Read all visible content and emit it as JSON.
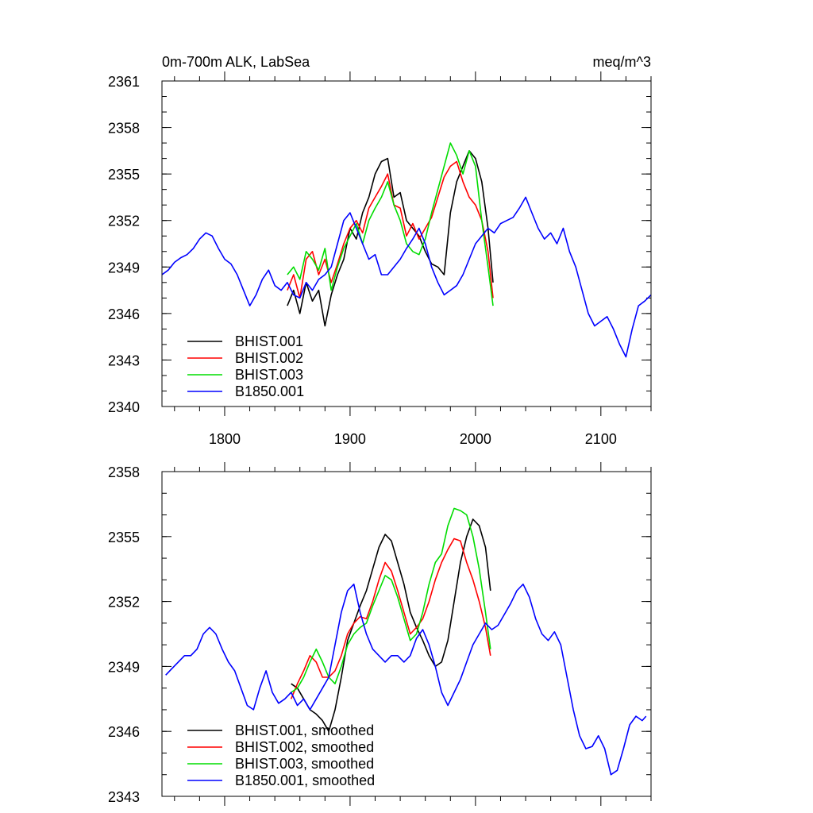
{
  "chart_data": [
    {
      "type": "line",
      "title": "0m-700m ALK, LabSea",
      "units": "meq/m^3",
      "xlim": [
        1750,
        2140
      ],
      "ylim": [
        2340,
        2361
      ],
      "x_ticks": [
        1800,
        1900,
        2000,
        2100
      ],
      "x_tick_labels": [
        "1800",
        "1900",
        "2000",
        "2100"
      ],
      "y_ticks": [
        2340,
        2343,
        2346,
        2349,
        2352,
        2355,
        2358,
        2361
      ],
      "y_tick_labels": [
        "2340",
        "2343",
        "2346",
        "2349",
        "2352",
        "2355",
        "2358",
        "2361"
      ],
      "grid": false,
      "legend_position": "bottom-left",
      "series": [
        {
          "name": "BHIST.001",
          "color": "#000000",
          "x": [
            1850,
            1855,
            1860,
            1865,
            1870,
            1875,
            1880,
            1885,
            1890,
            1895,
            1900,
            1905,
            1910,
            1915,
            1920,
            1925,
            1930,
            1935,
            1940,
            1945,
            1950,
            1955,
            1960,
            1965,
            1970,
            1975,
            1980,
            1985,
            1990,
            1995,
            2000,
            2005,
            2010,
            2014
          ],
          "y": [
            2346.5,
            2347.5,
            2346.0,
            2348.0,
            2346.8,
            2347.5,
            2345.2,
            2347.2,
            2348.5,
            2349.5,
            2351.5,
            2350.8,
            2352.5,
            2353.5,
            2355.0,
            2355.8,
            2356.0,
            2353.5,
            2353.8,
            2352.0,
            2351.5,
            2351.0,
            2350.0,
            2349.2,
            2349.0,
            2348.5,
            2352.5,
            2354.5,
            2355.5,
            2356.5,
            2356.0,
            2354.5,
            2351.5,
            2348.0
          ]
        },
        {
          "name": "BHIST.002",
          "color": "#ff0000",
          "x": [
            1850,
            1855,
            1860,
            1865,
            1870,
            1875,
            1880,
            1885,
            1890,
            1895,
            1900,
            1905,
            1910,
            1915,
            1920,
            1925,
            1930,
            1935,
            1940,
            1945,
            1950,
            1955,
            1960,
            1965,
            1970,
            1975,
            1980,
            1985,
            1990,
            1995,
            2000,
            2005,
            2010,
            2014
          ],
          "y": [
            2347.5,
            2348.5,
            2347.0,
            2349.5,
            2350.0,
            2348.5,
            2349.5,
            2348.0,
            2349.2,
            2350.5,
            2351.5,
            2352.0,
            2351.2,
            2352.8,
            2353.5,
            2354.2,
            2355.0,
            2353.0,
            2352.8,
            2351.0,
            2351.8,
            2350.8,
            2351.5,
            2352.2,
            2353.5,
            2354.8,
            2355.5,
            2355.8,
            2354.5,
            2353.5,
            2353.0,
            2352.0,
            2350.0,
            2347.0
          ]
        },
        {
          "name": "BHIST.003",
          "color": "#00dd00",
          "x": [
            1850,
            1855,
            1860,
            1865,
            1870,
            1875,
            1880,
            1885,
            1890,
            1895,
            1900,
            1905,
            1910,
            1915,
            1920,
            1925,
            1930,
            1935,
            1940,
            1945,
            1950,
            1955,
            1960,
            1965,
            1970,
            1975,
            1980,
            1985,
            1990,
            1995,
            2000,
            2005,
            2010,
            2014
          ],
          "y": [
            2348.5,
            2349.0,
            2348.2,
            2350.0,
            2349.5,
            2348.8,
            2350.2,
            2347.5,
            2349.0,
            2350.2,
            2351.0,
            2351.8,
            2350.5,
            2352.0,
            2352.8,
            2353.5,
            2354.5,
            2353.0,
            2352.0,
            2350.5,
            2350.0,
            2349.8,
            2350.8,
            2352.5,
            2354.0,
            2355.5,
            2357.0,
            2356.2,
            2355.0,
            2356.5,
            2355.5,
            2352.0,
            2349.0,
            2346.5
          ]
        },
        {
          "name": "B1850.001",
          "color": "#0000ff",
          "x": [
            1750,
            1755,
            1760,
            1765,
            1770,
            1775,
            1780,
            1785,
            1790,
            1795,
            1800,
            1805,
            1810,
            1815,
            1820,
            1825,
            1830,
            1835,
            1840,
            1845,
            1850,
            1855,
            1860,
            1865,
            1870,
            1875,
            1880,
            1885,
            1890,
            1895,
            1900,
            1905,
            1910,
            1915,
            1920,
            1925,
            1930,
            1935,
            1940,
            1945,
            1950,
            1955,
            1960,
            1965,
            1970,
            1975,
            1980,
            1985,
            1990,
            1995,
            2000,
            2005,
            2010,
            2015,
            2020,
            2025,
            2030,
            2035,
            2040,
            2045,
            2050,
            2055,
            2060,
            2065,
            2070,
            2075,
            2080,
            2085,
            2090,
            2095,
            2100,
            2105,
            2110,
            2115,
            2120,
            2125,
            2130,
            2135,
            2140
          ],
          "y": [
            2348.5,
            2348.8,
            2349.3,
            2349.6,
            2349.8,
            2350.2,
            2350.8,
            2351.2,
            2351.0,
            2350.2,
            2349.5,
            2349.2,
            2348.5,
            2347.5,
            2346.5,
            2347.2,
            2348.2,
            2348.8,
            2347.8,
            2347.5,
            2348.0,
            2347.2,
            2347.0,
            2348.0,
            2347.5,
            2348.2,
            2348.5,
            2349.0,
            2350.5,
            2352.0,
            2352.5,
            2351.5,
            2350.5,
            2349.5,
            2349.8,
            2348.5,
            2348.5,
            2349.0,
            2349.5,
            2350.2,
            2350.8,
            2351.5,
            2350.5,
            2349.0,
            2348.0,
            2347.2,
            2347.5,
            2347.8,
            2348.5,
            2349.5,
            2350.5,
            2351.0,
            2351.5,
            2351.2,
            2351.8,
            2352.0,
            2352.2,
            2352.8,
            2353.5,
            2352.5,
            2351.5,
            2350.8,
            2351.2,
            2350.5,
            2351.5,
            2350.0,
            2349.0,
            2347.5,
            2346.0,
            2345.2,
            2345.5,
            2345.8,
            2345.0,
            2344.0,
            2343.2,
            2345.0,
            2346.5,
            2346.8,
            2347.2
          ]
        }
      ]
    },
    {
      "type": "line",
      "xlim": [
        1750,
        2140
      ],
      "ylim": [
        2343,
        2358
      ],
      "x_ticks": [
        1800,
        1900,
        2000,
        2100
      ],
      "y_ticks": [
        2343,
        2346,
        2349,
        2352,
        2355,
        2358
      ],
      "y_tick_labels": [
        "2343",
        "2346",
        "2349",
        "2352",
        "2355",
        "2358"
      ],
      "grid": false,
      "legend_position": "bottom-left",
      "series": [
        {
          "name": "BHIST.001, smoothed",
          "color": "#000000",
          "x": [
            1853,
            1858,
            1863,
            1868,
            1873,
            1878,
            1883,
            1888,
            1893,
            1898,
            1903,
            1908,
            1913,
            1918,
            1923,
            1928,
            1933,
            1938,
            1943,
            1948,
            1953,
            1958,
            1963,
            1968,
            1973,
            1978,
            1983,
            1988,
            1993,
            1998,
            2003,
            2008,
            2012
          ],
          "y": [
            2348.2,
            2348.0,
            2347.5,
            2347.0,
            2346.8,
            2346.5,
            2346.0,
            2347.0,
            2348.5,
            2350.2,
            2351.0,
            2351.8,
            2352.5,
            2353.5,
            2354.5,
            2355.1,
            2354.8,
            2353.8,
            2352.8,
            2351.5,
            2350.8,
            2350.2,
            2349.5,
            2349.0,
            2349.2,
            2350.2,
            2352.0,
            2353.8,
            2355.0,
            2355.8,
            2355.5,
            2354.5,
            2352.5
          ]
        },
        {
          "name": "BHIST.002, smoothed",
          "color": "#ff0000",
          "x": [
            1853,
            1858,
            1863,
            1868,
            1873,
            1878,
            1883,
            1888,
            1893,
            1898,
            1903,
            1908,
            1913,
            1918,
            1923,
            1928,
            1933,
            1938,
            1943,
            1948,
            1953,
            1958,
            1963,
            1968,
            1973,
            1978,
            1983,
            1988,
            1993,
            1998,
            2003,
            2008,
            2012
          ],
          "y": [
            2347.5,
            2348.2,
            2348.8,
            2349.5,
            2349.2,
            2348.5,
            2348.5,
            2348.8,
            2349.5,
            2350.5,
            2351.0,
            2351.3,
            2351.2,
            2352.0,
            2353.0,
            2353.8,
            2353.4,
            2352.5,
            2351.5,
            2350.5,
            2350.8,
            2351.2,
            2352.0,
            2353.0,
            2353.8,
            2354.4,
            2354.9,
            2354.8,
            2353.8,
            2353.0,
            2352.0,
            2350.8,
            2349.5
          ]
        },
        {
          "name": "BHIST.003, smoothed",
          "color": "#00dd00",
          "x": [
            1853,
            1858,
            1863,
            1868,
            1873,
            1878,
            1883,
            1888,
            1893,
            1898,
            1903,
            1908,
            1913,
            1918,
            1923,
            1928,
            1933,
            1938,
            1943,
            1948,
            1953,
            1958,
            1963,
            1968,
            1973,
            1978,
            1983,
            1988,
            1993,
            1998,
            2003,
            2008,
            2012
          ],
          "y": [
            2347.8,
            2348.0,
            2348.5,
            2349.2,
            2349.8,
            2349.2,
            2348.5,
            2348.2,
            2349.0,
            2350.0,
            2350.5,
            2350.8,
            2351.0,
            2351.8,
            2352.5,
            2353.2,
            2353.0,
            2352.2,
            2351.2,
            2350.2,
            2350.5,
            2351.5,
            2352.8,
            2353.8,
            2354.2,
            2355.5,
            2356.3,
            2356.2,
            2356.0,
            2355.0,
            2353.5,
            2351.5,
            2349.8
          ]
        },
        {
          "name": "B1850.001, smoothed",
          "color": "#0000ff",
          "x": [
            1753,
            1758,
            1763,
            1768,
            1773,
            1778,
            1783,
            1788,
            1793,
            1798,
            1803,
            1808,
            1813,
            1818,
            1823,
            1828,
            1833,
            1838,
            1843,
            1848,
            1853,
            1858,
            1863,
            1868,
            1873,
            1878,
            1883,
            1888,
            1893,
            1898,
            1903,
            1908,
            1913,
            1918,
            1923,
            1928,
            1933,
            1938,
            1943,
            1948,
            1953,
            1958,
            1963,
            1968,
            1973,
            1978,
            1983,
            1988,
            1993,
            1998,
            2003,
            2008,
            2013,
            2018,
            2023,
            2028,
            2033,
            2038,
            2043,
            2048,
            2053,
            2058,
            2063,
            2068,
            2073,
            2078,
            2083,
            2088,
            2093,
            2098,
            2103,
            2108,
            2113,
            2118,
            2123,
            2128,
            2133,
            2136
          ],
          "y": [
            2348.6,
            2348.9,
            2349.2,
            2349.5,
            2349.5,
            2349.8,
            2350.5,
            2350.8,
            2350.5,
            2349.8,
            2349.2,
            2348.8,
            2348.0,
            2347.2,
            2347.0,
            2348.0,
            2348.8,
            2347.8,
            2347.3,
            2347.5,
            2347.8,
            2347.2,
            2347.5,
            2347.0,
            2347.5,
            2348.0,
            2348.5,
            2350.0,
            2351.5,
            2352.5,
            2352.8,
            2351.5,
            2350.5,
            2349.8,
            2349.5,
            2349.2,
            2349.5,
            2349.5,
            2349.2,
            2349.5,
            2350.3,
            2350.7,
            2350.0,
            2349.0,
            2347.8,
            2347.2,
            2347.8,
            2348.4,
            2349.2,
            2350.0,
            2350.5,
            2351.0,
            2350.7,
            2350.9,
            2351.4,
            2351.9,
            2352.5,
            2352.8,
            2352.2,
            2351.2,
            2350.5,
            2350.2,
            2350.6,
            2350.0,
            2348.5,
            2347.0,
            2345.8,
            2345.2,
            2345.3,
            2345.8,
            2345.2,
            2344.0,
            2344.2,
            2345.2,
            2346.3,
            2346.7,
            2346.5,
            2346.7
          ]
        }
      ]
    }
  ]
}
